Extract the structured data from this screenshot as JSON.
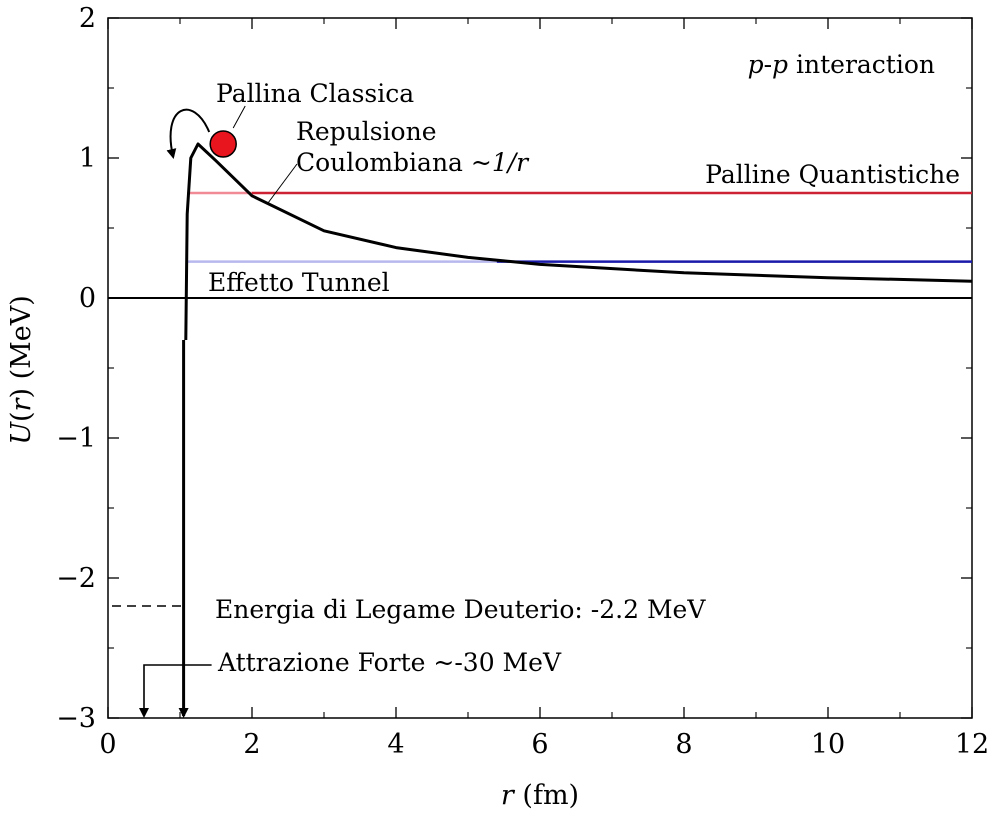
{
  "chart_data": {
    "type": "line",
    "title": "p-p interaction",
    "title_parts": {
      "italic_a": "p",
      "dash": "-",
      "italic_b": "p",
      "rest": " interaction"
    },
    "xlabel": "r (fm)",
    "xlabel_parts": {
      "var": "r",
      "unit": " (fm)"
    },
    "ylabel": "U(r) (MeV)",
    "ylabel_parts": {
      "var": "U",
      "open": "(",
      "arg": "r",
      "close": ")",
      "unit": " (MeV)"
    },
    "xlim": [
      0,
      12
    ],
    "ylim": [
      -3,
      2
    ],
    "xticks": [
      0,
      2,
      4,
      6,
      8,
      10,
      12
    ],
    "xtick_labels": [
      "0",
      "2",
      "4",
      "6",
      "8",
      "10",
      "12"
    ],
    "yticks": [
      -3,
      -2,
      -1,
      0,
      1,
      2
    ],
    "ytick_labels": [
      "−3",
      "−2",
      "−1",
      "0",
      "1",
      "2"
    ],
    "grid": false,
    "potential_curve": {
      "name": "U(r)",
      "color": "#000000",
      "well_edge_x": 1.05,
      "peak": [
        1.25,
        1.1
      ],
      "x": [
        1.08,
        1.1,
        1.15,
        1.25,
        1.5,
        2.0,
        3.0,
        4.0,
        5.0,
        5.5,
        6.0,
        8.0,
        10.0,
        12.0
      ],
      "y": [
        -0.3,
        0.6,
        1.0,
        1.1,
        0.98,
        0.73,
        0.48,
        0.36,
        0.29,
        0.265,
        0.24,
        0.18,
        0.145,
        0.12
      ]
    },
    "levels": [
      {
        "label": "Palline Quantistiche",
        "y": 0.75,
        "x_start": 1.1,
        "x_end": 12,
        "color": "#cc2233",
        "inside_color": "#f08a94"
      },
      {
        "label": "Effetto Tunnel",
        "y": 0.26,
        "x_start": 1.1,
        "x_end": 12,
        "x_exit": 5.4,
        "color": "#1a1aaa",
        "inside_color": "#b8b8ee"
      }
    ],
    "zero_line": {
      "y": 0,
      "color": "#000000"
    },
    "deuteron_binding": {
      "label": "Energia di Legame Deuterio: -2.2 MeV",
      "y": -2.2,
      "x_start": 0,
      "x_end": 1.05,
      "style": "dashed"
    },
    "strong_attraction": {
      "label": "Attrazione Forte ~-30 MeV",
      "arrow_x": 0.5,
      "well_x": 1.05
    },
    "classical_ball": {
      "label": "Pallina Classica",
      "x": 1.6,
      "y": 1.1,
      "color": "#e8141e"
    },
    "coulomb_label": {
      "line1": "Repulsione",
      "line2_prefix": "Coulombiana ",
      "line2_italic": "~1/r"
    }
  }
}
